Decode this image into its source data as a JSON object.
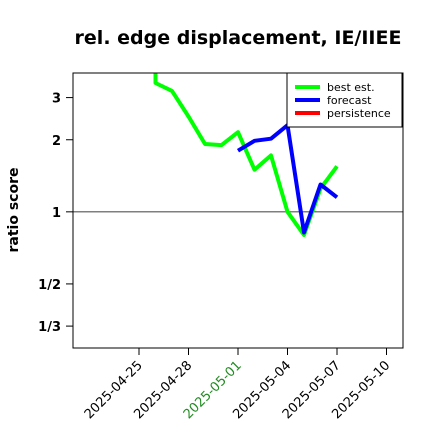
{
  "chart_data": {
    "type": "line",
    "title": "rel. edge displacement, IE/IIEE",
    "xlabel": "",
    "ylabel": "ratio score",
    "y_scale": "log",
    "ylim": [
      0.27,
      3.8
    ],
    "xlim": [
      "2025-04-21",
      "2025-05-11"
    ],
    "yticks": [
      {
        "value": 3,
        "label": "3"
      },
      {
        "value": 2,
        "label": "2"
      },
      {
        "value": 1,
        "label": "1"
      },
      {
        "value": 0.5,
        "label": "1/2"
      },
      {
        "value": 0.3333,
        "label": "1/3"
      }
    ],
    "xticks": [
      {
        "value": "2025-04-25",
        "label": "2025-04-25",
        "color": "#000000"
      },
      {
        "value": "2025-04-28",
        "label": "2025-04-28",
        "color": "#000000"
      },
      {
        "value": "2025-05-01",
        "label": "2025-05-01",
        "color": "#228b22"
      },
      {
        "value": "2025-05-04",
        "label": "2025-05-04",
        "color": "#000000"
      },
      {
        "value": "2025-05-07",
        "label": "2025-05-07",
        "color": "#000000"
      },
      {
        "value": "2025-05-10",
        "label": "2025-05-10",
        "color": "#000000"
      }
    ],
    "reference_line": 1,
    "legend_position": "top-right",
    "grid": false,
    "series": [
      {
        "name": "best est.",
        "color": "#00ff00",
        "x": [
          "2025-04-26",
          "2025-04-26",
          "2025-04-27",
          "2025-04-28",
          "2025-04-29",
          "2025-04-30",
          "2025-05-01",
          "2025-05-02",
          "2025-05-03",
          "2025-05-04",
          "2025-05-05",
          "2025-05-06",
          "2025-05-07"
        ],
        "y": [
          3.8,
          3.45,
          3.2,
          2.5,
          1.92,
          1.9,
          2.15,
          1.5,
          1.72,
          1.0,
          0.8,
          1.25,
          1.55
        ]
      },
      {
        "name": "forecast",
        "color": "#0000ff",
        "x": [
          "2025-05-01",
          "2025-05-02",
          "2025-05-03",
          "2025-05-04",
          "2025-05-05",
          "2025-05-06",
          "2025-05-07"
        ],
        "y": [
          1.8,
          1.98,
          2.02,
          2.3,
          0.82,
          1.3,
          1.15
        ]
      },
      {
        "name": "persistence",
        "color": "#ff0000",
        "x": [],
        "y": []
      }
    ]
  }
}
